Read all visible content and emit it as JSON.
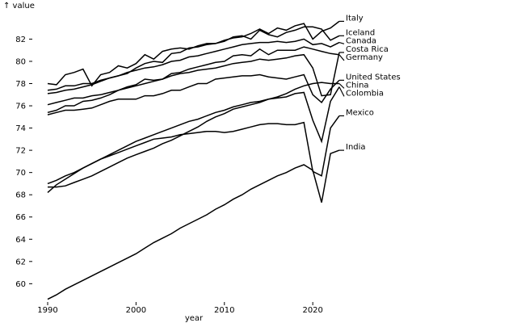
{
  "chart_data": {
    "type": "line",
    "xlabel": "year",
    "ylabel": "↑ value",
    "xlim": [
      1990,
      2023
    ],
    "ylim": [
      58.5,
      84.5
    ],
    "x_ticks": [
      1990,
      2000,
      2010,
      2020
    ],
    "y_ticks": [
      60,
      62,
      64,
      66,
      68,
      70,
      72,
      74,
      76,
      78,
      80,
      82
    ],
    "grid": false,
    "legend": "none",
    "label_placement": "right-end",
    "colors": {
      "line": "#000000",
      "text": "#000000",
      "background": "#ffffff"
    },
    "x": [
      1990,
      1991,
      1992,
      1993,
      1994,
      1995,
      1996,
      1997,
      1998,
      1999,
      2000,
      2001,
      2002,
      2003,
      2004,
      2005,
      2006,
      2007,
      2008,
      2009,
      2010,
      2011,
      2012,
      2013,
      2014,
      2015,
      2016,
      2017,
      2018,
      2019,
      2020,
      2021,
      2022,
      2023
    ],
    "series": [
      {
        "name": "Italy",
        "values": [
          77.1,
          77.2,
          77.4,
          77.5,
          77.7,
          77.9,
          78.2,
          78.5,
          78.7,
          78.9,
          79.4,
          79.8,
          80.0,
          79.9,
          80.7,
          80.8,
          81.2,
          81.3,
          81.5,
          81.6,
          81.9,
          82.1,
          82.2,
          82.5,
          82.9,
          82.5,
          83.0,
          82.8,
          83.2,
          83.4,
          82.0,
          82.7,
          83.0,
          83.6
        ]
      },
      {
        "name": "Iceland",
        "values": [
          78.0,
          77.9,
          78.8,
          79.0,
          79.3,
          77.8,
          78.8,
          79.0,
          79.6,
          79.4,
          79.8,
          80.6,
          80.2,
          80.9,
          81.1,
          81.2,
          81.1,
          81.4,
          81.6,
          81.6,
          81.8,
          82.2,
          82.3,
          82.0,
          82.8,
          82.4,
          82.2,
          82.6,
          82.8,
          83.1,
          83.1,
          82.9,
          81.9,
          82.3
        ]
      },
      {
        "name": "Canada",
        "values": [
          77.4,
          77.5,
          77.8,
          77.8,
          78.0,
          78.0,
          78.3,
          78.5,
          78.7,
          79.0,
          79.2,
          79.4,
          79.5,
          79.7,
          80.0,
          80.1,
          80.4,
          80.5,
          80.7,
          80.9,
          81.1,
          81.3,
          81.5,
          81.6,
          81.7,
          81.7,
          81.8,
          81.7,
          81.8,
          82.0,
          81.5,
          81.6,
          81.3,
          81.7
        ]
      },
      {
        "name": "Costa Rica",
        "values": [
          76.1,
          76.3,
          76.5,
          76.7,
          76.7,
          76.9,
          77.0,
          77.2,
          77.4,
          77.6,
          77.8,
          78.0,
          78.2,
          78.4,
          78.7,
          78.9,
          79.0,
          79.2,
          79.3,
          79.4,
          79.6,
          79.8,
          79.9,
          80.0,
          80.2,
          80.1,
          80.2,
          80.3,
          80.5,
          80.6,
          79.4,
          76.9,
          77.0,
          80.8
        ]
      },
      {
        "name": "Germany",
        "values": [
          75.4,
          75.6,
          76.0,
          76.0,
          76.4,
          76.5,
          76.7,
          77.0,
          77.4,
          77.7,
          77.9,
          78.4,
          78.3,
          78.4,
          78.9,
          79.0,
          79.3,
          79.5,
          79.7,
          79.9,
          80.0,
          80.5,
          80.6,
          80.5,
          81.1,
          80.6,
          81.0,
          81.0,
          81.0,
          81.3,
          81.1,
          80.9,
          80.7,
          80.6
        ]
      },
      {
        "name": "United States",
        "values": [
          75.2,
          75.4,
          75.6,
          75.6,
          75.7,
          75.8,
          76.1,
          76.4,
          76.6,
          76.6,
          76.6,
          76.9,
          76.9,
          77.1,
          77.4,
          77.4,
          77.7,
          78.0,
          78.0,
          78.4,
          78.5,
          78.6,
          78.7,
          78.7,
          78.8,
          78.6,
          78.5,
          78.4,
          78.6,
          78.8,
          77.0,
          76.3,
          77.5,
          78.3
        ]
      },
      {
        "name": "China",
        "values": [
          68.7,
          68.7,
          68.8,
          69.1,
          69.4,
          69.7,
          70.1,
          70.5,
          70.9,
          71.3,
          71.6,
          71.9,
          72.2,
          72.6,
          72.9,
          73.3,
          73.7,
          74.1,
          74.6,
          75.0,
          75.3,
          75.7,
          75.9,
          76.1,
          76.3,
          76.6,
          76.8,
          77.1,
          77.5,
          77.8,
          78.0,
          78.1,
          78.0,
          78.0
        ]
      },
      {
        "name": "Colombia",
        "values": [
          68.2,
          68.9,
          69.4,
          69.9,
          70.4,
          70.8,
          71.2,
          71.6,
          72.0,
          72.4,
          72.8,
          73.1,
          73.4,
          73.7,
          74.0,
          74.3,
          74.6,
          74.8,
          75.1,
          75.4,
          75.6,
          75.9,
          76.1,
          76.3,
          76.4,
          76.6,
          76.7,
          76.8,
          77.1,
          77.2,
          74.7,
          72.8,
          76.4,
          77.7
        ]
      },
      {
        "name": "Mexico",
        "values": [
          69.0,
          69.3,
          69.7,
          70.0,
          70.4,
          70.8,
          71.2,
          71.5,
          71.8,
          72.1,
          72.4,
          72.7,
          73.0,
          73.1,
          73.2,
          73.4,
          73.5,
          73.6,
          73.7,
          73.7,
          73.6,
          73.7,
          73.9,
          74.1,
          74.3,
          74.4,
          74.4,
          74.3,
          74.3,
          74.5,
          70.1,
          69.7,
          74.0,
          75.1
        ]
      },
      {
        "name": "India",
        "values": [
          58.6,
          59.0,
          59.5,
          59.9,
          60.3,
          60.7,
          61.1,
          61.5,
          61.9,
          62.3,
          62.7,
          63.2,
          63.7,
          64.1,
          64.5,
          65.0,
          65.4,
          65.8,
          66.2,
          66.7,
          67.1,
          67.6,
          68.0,
          68.5,
          68.9,
          69.3,
          69.7,
          70.0,
          70.4,
          70.7,
          70.2,
          67.3,
          71.7,
          72.0
        ]
      }
    ]
  }
}
